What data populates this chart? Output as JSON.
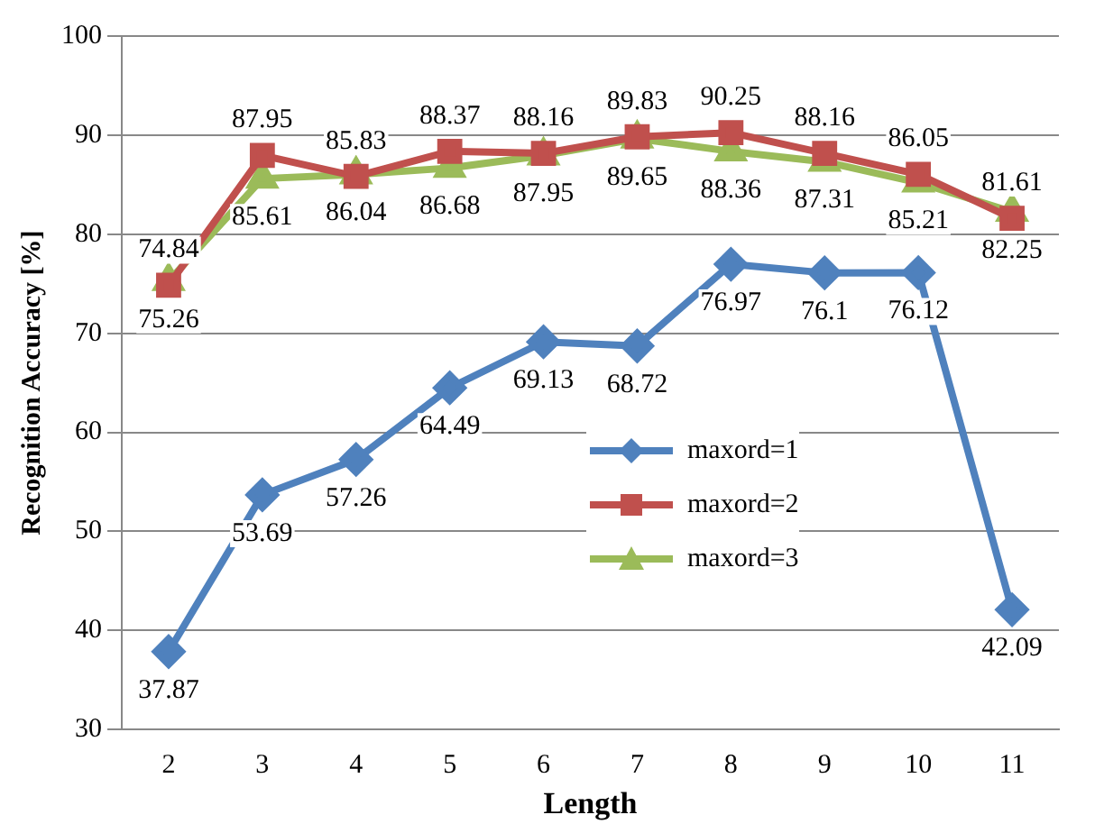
{
  "chart_data": {
    "type": "line",
    "xlabel": "Length",
    "ylabel": "Recognition Accuracy [%]",
    "categories": [
      "2",
      "3",
      "4",
      "5",
      "6",
      "7",
      "8",
      "9",
      "10",
      "11"
    ],
    "series": [
      {
        "name": "maxord=1",
        "color": "#4f81bd",
        "marker": "diamond",
        "values": [
          37.87,
          53.69,
          57.26,
          64.49,
          69.13,
          68.72,
          76.97,
          76.1,
          76.12,
          42.09
        ]
      },
      {
        "name": "maxord=2",
        "color": "#c0504d",
        "marker": "square",
        "values": [
          74.84,
          87.95,
          85.83,
          88.37,
          88.16,
          89.83,
          90.25,
          88.16,
          86.05,
          81.61
        ]
      },
      {
        "name": "maxord=3",
        "color": "#9bbb59",
        "marker": "triangle",
        "values": [
          75.26,
          85.61,
          86.04,
          86.68,
          87.95,
          89.65,
          88.36,
          87.31,
          85.21,
          82.25
        ]
      }
    ],
    "ylim": [
      30,
      100
    ],
    "yticks": [
      30,
      40,
      50,
      60,
      70,
      80,
      90,
      100
    ],
    "grid": "y",
    "legend": "right",
    "data_labels": true,
    "line_style": "solid"
  }
}
